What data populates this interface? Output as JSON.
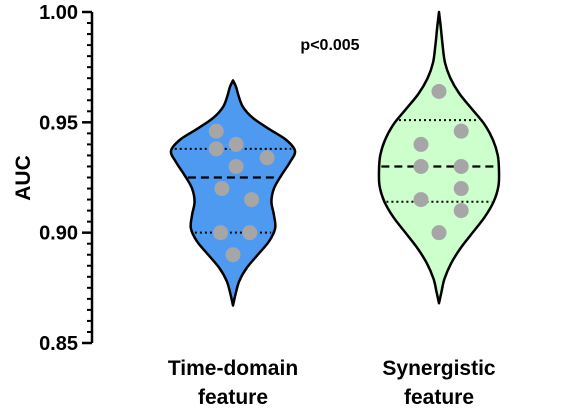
{
  "chart_data": {
    "type": "violin",
    "ylabel": "AUC",
    "ylim": [
      0.85,
      1.0
    ],
    "y_ticks": [
      "0.85",
      "0.90",
      "0.95",
      "1.00"
    ],
    "y_tick_values": [
      0.85,
      0.9,
      0.95,
      1.0
    ],
    "annotation": "p<0.005",
    "categories": [
      {
        "line1": "Time-domain",
        "line2": "feature"
      },
      {
        "line1": "Synergistic",
        "line2": "feature"
      }
    ],
    "series": [
      {
        "fill": "#4e9af0",
        "point_color": "#a6a6a6",
        "min": 0.867,
        "max": 0.969,
        "median": 0.925,
        "q1": 0.9,
        "q3": 0.938,
        "profile": [
          [
            0.867,
            0.0
          ],
          [
            0.872,
            0.04
          ],
          [
            0.878,
            0.1
          ],
          [
            0.884,
            0.22
          ],
          [
            0.89,
            0.4
          ],
          [
            0.896,
            0.58
          ],
          [
            0.902,
            0.68
          ],
          [
            0.908,
            0.66
          ],
          [
            0.914,
            0.62
          ],
          [
            0.92,
            0.66
          ],
          [
            0.926,
            0.78
          ],
          [
            0.932,
            0.92
          ],
          [
            0.937,
            1.0
          ],
          [
            0.942,
            0.86
          ],
          [
            0.947,
            0.58
          ],
          [
            0.952,
            0.32
          ],
          [
            0.957,
            0.16
          ],
          [
            0.962,
            0.09
          ],
          [
            0.966,
            0.05
          ],
          [
            0.969,
            0.0
          ]
        ],
        "points": [
          {
            "offset": -0.27,
            "y": 0.946
          },
          {
            "offset": -0.27,
            "y": 0.938
          },
          {
            "offset": 0.05,
            "y": 0.94
          },
          {
            "offset": 0.05,
            "y": 0.93
          },
          {
            "offset": 0.55,
            "y": 0.934
          },
          {
            "offset": -0.18,
            "y": 0.92
          },
          {
            "offset": 0.3,
            "y": 0.915
          },
          {
            "offset": -0.2,
            "y": 0.9
          },
          {
            "offset": 0.27,
            "y": 0.9
          },
          {
            "offset": 0.0,
            "y": 0.89
          }
        ]
      },
      {
        "fill": "#ccffcc",
        "point_color": "#a6a6a6",
        "min": 0.868,
        "max": 1.0,
        "median": 0.93,
        "q1": 0.914,
        "q3": 0.951,
        "profile": [
          [
            0.868,
            0.0
          ],
          [
            0.873,
            0.04
          ],
          [
            0.879,
            0.09
          ],
          [
            0.886,
            0.2
          ],
          [
            0.893,
            0.36
          ],
          [
            0.9,
            0.56
          ],
          [
            0.907,
            0.76
          ],
          [
            0.914,
            0.91
          ],
          [
            0.921,
            0.99
          ],
          [
            0.928,
            1.0
          ],
          [
            0.935,
            0.98
          ],
          [
            0.942,
            0.9
          ],
          [
            0.949,
            0.76
          ],
          [
            0.956,
            0.55
          ],
          [
            0.963,
            0.34
          ],
          [
            0.97,
            0.19
          ],
          [
            0.977,
            0.1
          ],
          [
            0.985,
            0.06
          ],
          [
            0.993,
            0.03
          ],
          [
            1.0,
            0.0
          ]
        ],
        "points": [
          {
            "offset": 0.0,
            "y": 0.964
          },
          {
            "offset": 0.37,
            "y": 0.946
          },
          {
            "offset": -0.3,
            "y": 0.94
          },
          {
            "offset": -0.3,
            "y": 0.93
          },
          {
            "offset": 0.37,
            "y": 0.93
          },
          {
            "offset": 0.37,
            "y": 0.92
          },
          {
            "offset": -0.3,
            "y": 0.915
          },
          {
            "offset": 0.37,
            "y": 0.91
          },
          {
            "offset": 0.0,
            "y": 0.9
          }
        ]
      }
    ]
  }
}
